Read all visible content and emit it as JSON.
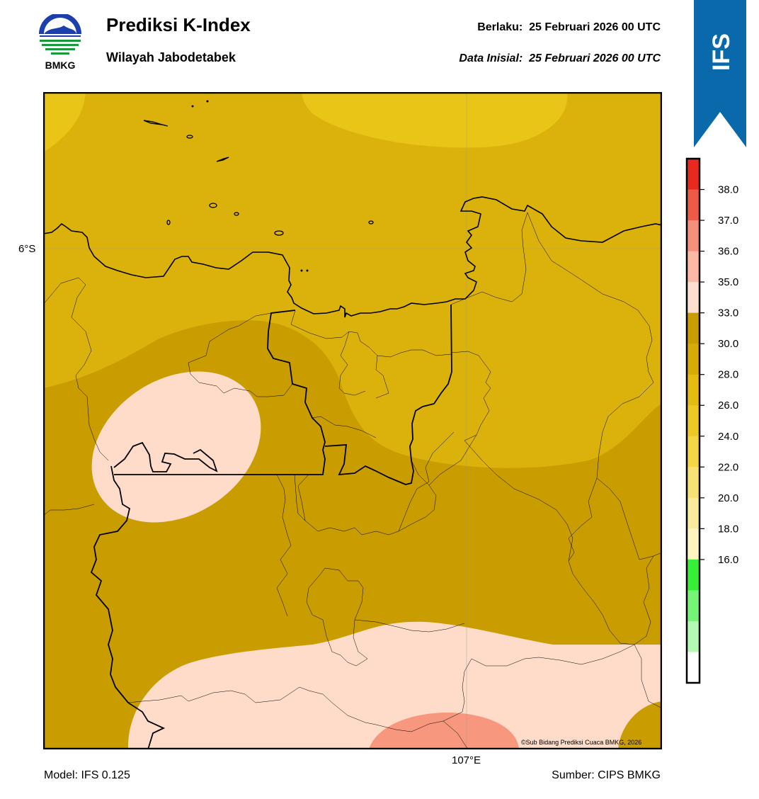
{
  "header": {
    "title": "Prediksi K-Index",
    "region": "Wilayah Jabodetabek",
    "valid_label": "Berlaku:",
    "valid_time": "25 Februari 2026 00 UTC",
    "init_label": "Data Inisial:",
    "init_time": "25 Februari 2026 00 UTC"
  },
  "logo": {
    "text": "BMKG"
  },
  "ribbon": {
    "text": "IFS",
    "color": "#0a69ab"
  },
  "map": {
    "lat_label": "6°S",
    "lon_label": "107°E",
    "credit": "©Sub Bidang Prediksi Cuaca BMKG, 2026"
  },
  "colorbar": {
    "tick_labels": [
      "38.0",
      "37.0",
      "36.0",
      "35.0",
      "33.0",
      "30.0",
      "28.0",
      "26.0",
      "24.0",
      "22.0",
      "20.0",
      "18.0",
      "16.0"
    ],
    "colors": [
      "#e8291e",
      "#ee5a48",
      "#f5907b",
      "#fdb9a4",
      "#fedfd0",
      "#c99c00",
      "#d6ab06",
      "#e4bc10",
      "#eec923",
      "#f3d545",
      "#f7e074",
      "#faea9c",
      "#fdf4c0",
      "#36ef36",
      "#75f575",
      "#b3fab3",
      "#ffffff"
    ]
  },
  "footer": {
    "model": "Model: IFS 0.125",
    "source": "Sumber: CIPS BMKG"
  }
}
